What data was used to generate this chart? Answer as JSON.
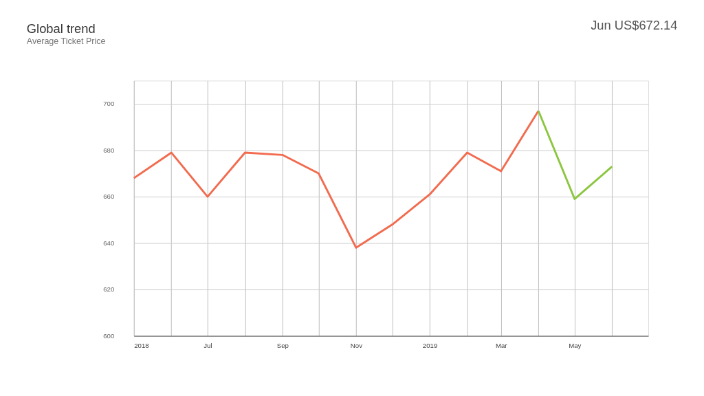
{
  "chart_data": {
    "type": "line",
    "title": "Global trend",
    "subtitle": "Average Ticket Price",
    "annotations": [
      "Jun  US$672.14"
    ],
    "series": [
      {
        "color": "#f26b4f",
        "x": [
          "2018-05",
          "2018-06",
          "2018-07",
          "2018-08",
          "2018-09",
          "2018-10",
          "2018-11",
          "2018-12",
          "2019-01",
          "2019-02",
          "2019-03",
          "2019-04"
        ],
        "values": [
          668,
          679,
          660,
          679,
          678,
          670,
          638,
          648,
          661,
          679,
          671,
          697
        ]
      },
      {
        "color": "#8cc63f",
        "x": [
          "2019-04",
          "2019-05",
          "2019-06"
        ],
        "values": [
          697,
          659,
          673
        ]
      }
    ],
    "xlim": [
      "2018-05",
      "2019-07"
    ],
    "xticks": [
      {
        "value": "2018-05",
        "label": "2018"
      },
      {
        "value": "2018-06",
        "label": null
      },
      {
        "value": "2018-07",
        "label": "Jul"
      },
      {
        "value": "2018-08",
        "label": null
      },
      {
        "value": "2018-09",
        "label": "Sep"
      },
      {
        "value": "2018-10",
        "label": null
      },
      {
        "value": "2018-11",
        "label": "Nov"
      },
      {
        "value": "2018-12",
        "label": null
      },
      {
        "value": "2019-01",
        "label": "2019"
      },
      {
        "value": "2019-02",
        "label": null
      },
      {
        "value": "2019-03",
        "label": "Mar"
      },
      {
        "value": "2019-04",
        "label": null
      },
      {
        "value": "2019-05",
        "label": "May"
      },
      {
        "value": "2019-06",
        "label": null
      }
    ],
    "ylim": [
      600,
      710
    ],
    "yticks": [
      600,
      620,
      640,
      660,
      680,
      700
    ],
    "grid": true,
    "legend": false,
    "marker": "none",
    "line_style": "solid"
  }
}
